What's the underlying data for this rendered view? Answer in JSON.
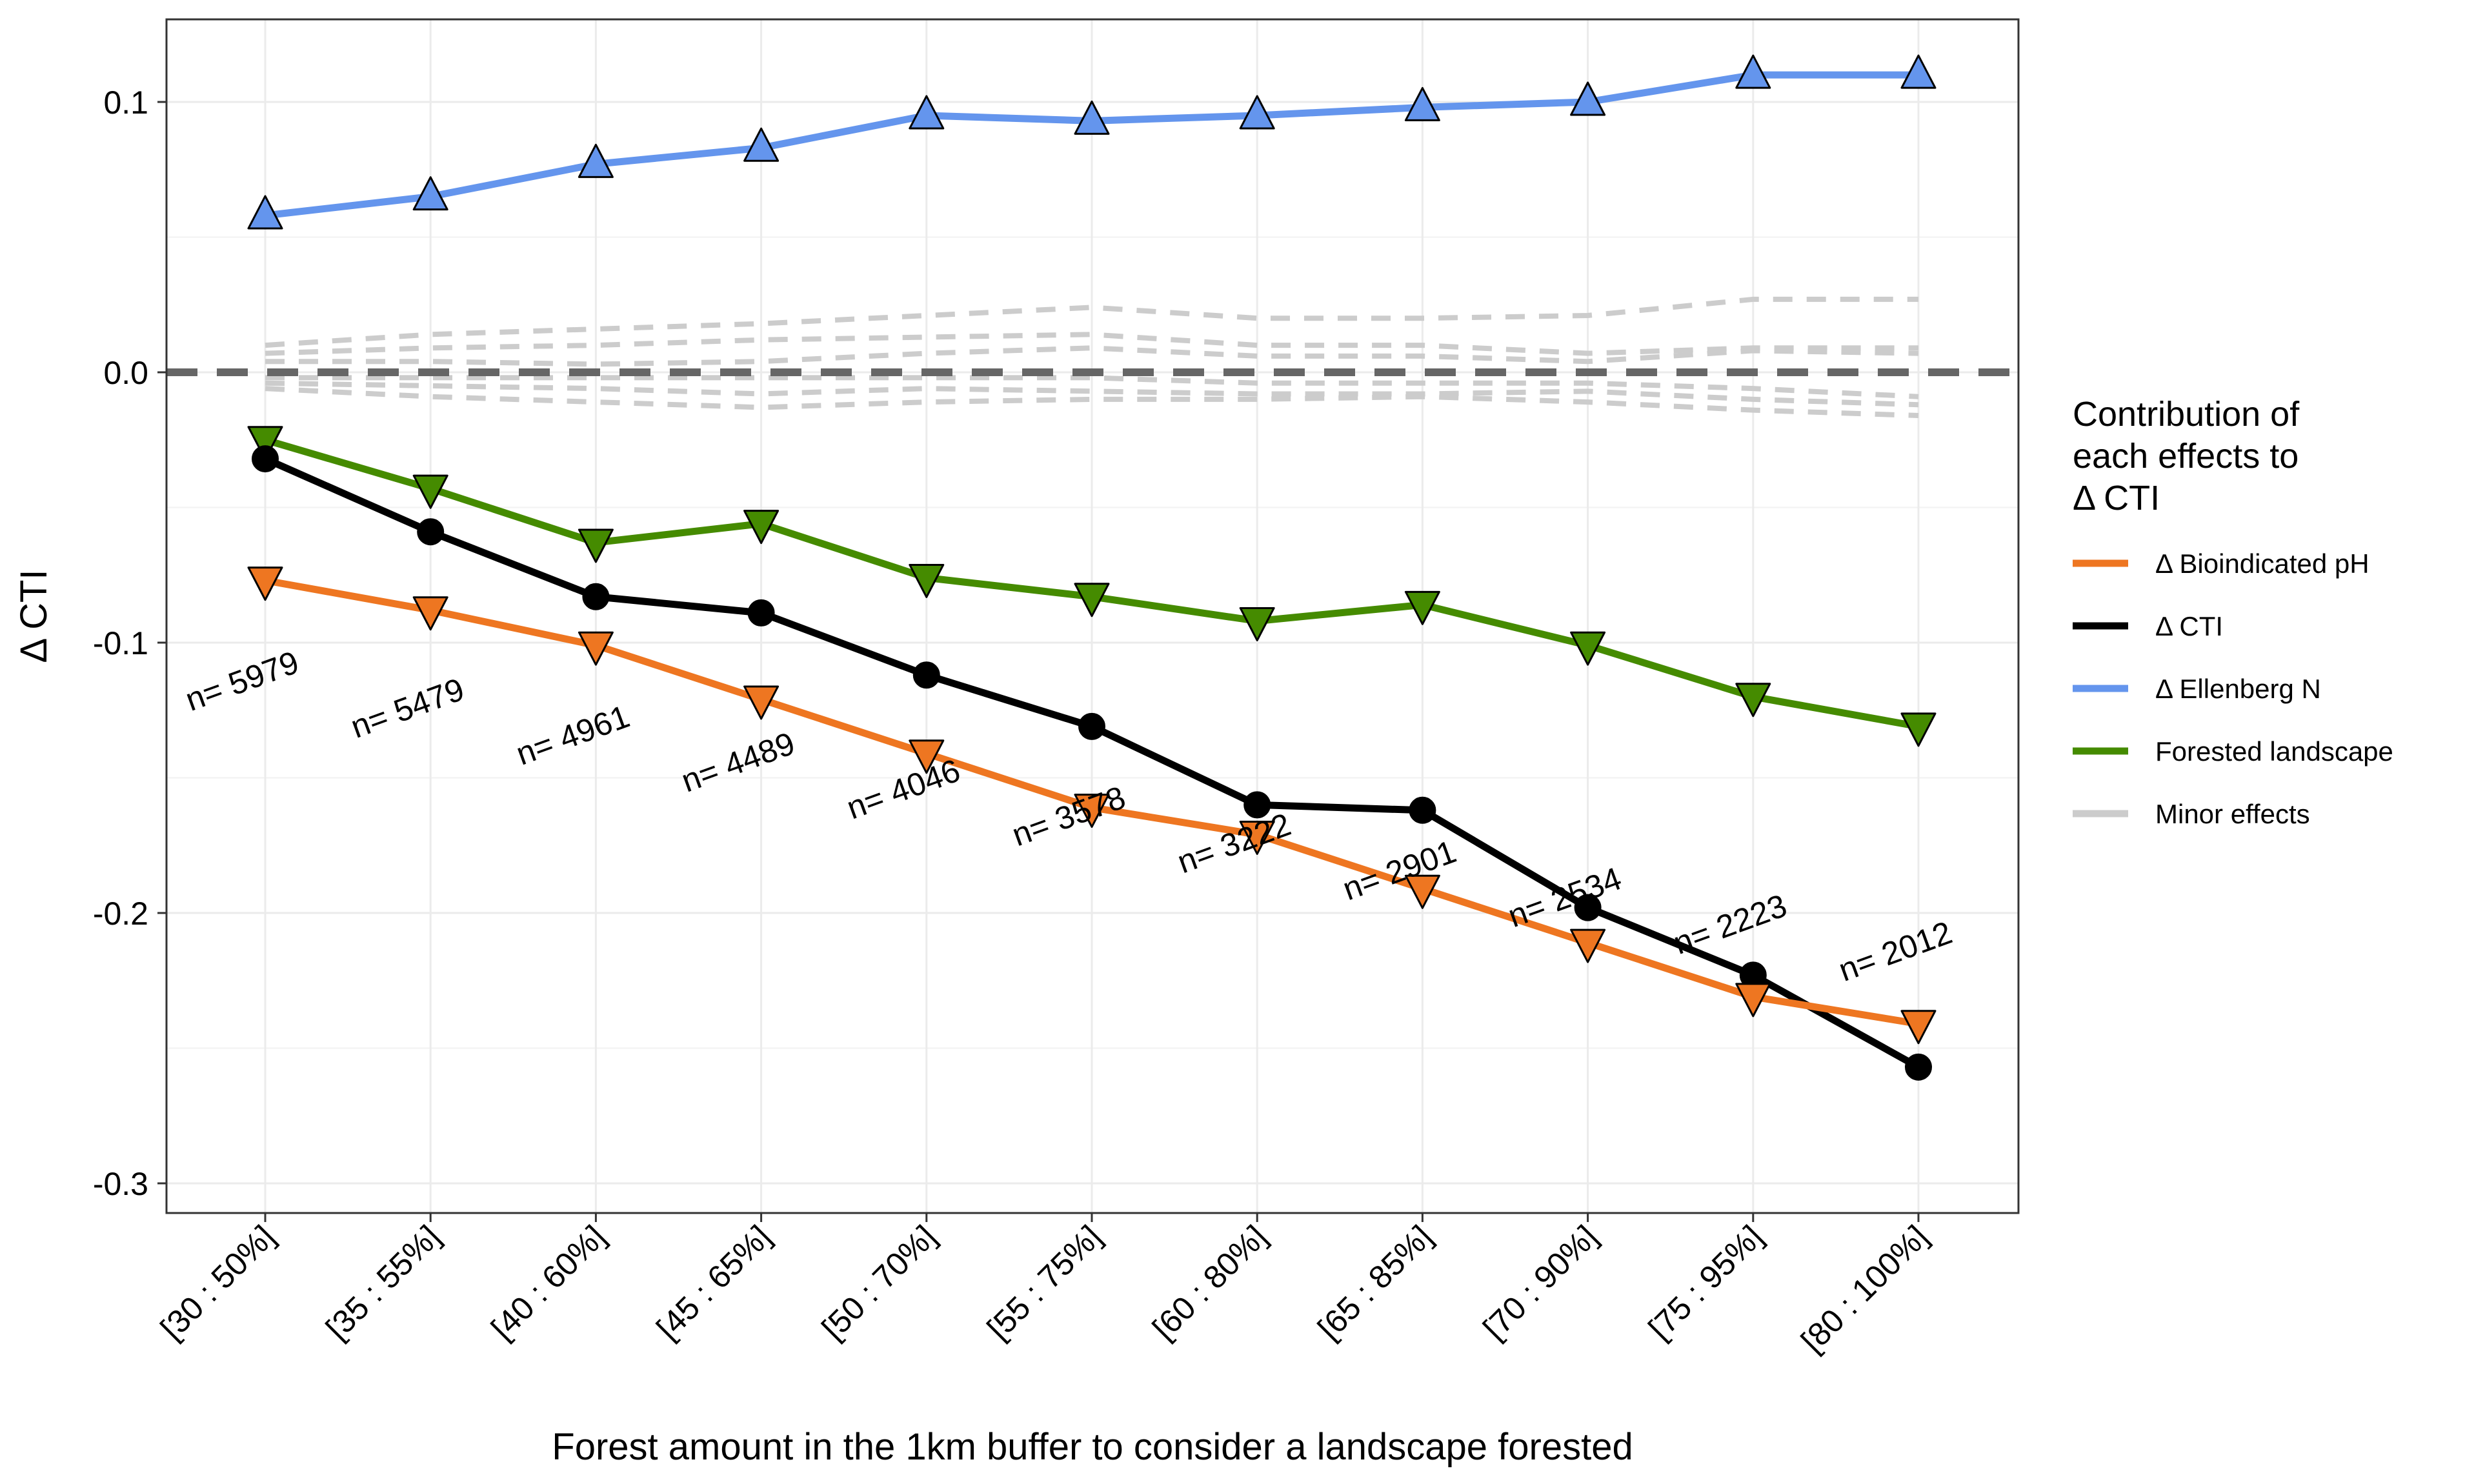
{
  "chart_data": {
    "type": "line",
    "title": "",
    "xlabel": "Forest amount in the 1km buffer to consider a landscape forested",
    "ylabel": "Δ CTI",
    "ylim": [
      -0.31,
      0.13
    ],
    "yticks": [
      0.1,
      0.0,
      -0.1,
      -0.2,
      -0.3
    ],
    "ytick_labels": [
      "0.1",
      "0.0",
      "-0.1",
      "-0.2",
      "-0.3"
    ],
    "categories": [
      "[30 : 50%]",
      "[35 : 55%]",
      "[40 : 60%]",
      "[45 : 65%]",
      "[50 : 70%]",
      "[55 : 75%]",
      "[60 : 80%]",
      "[65 : 85%]",
      "[70 : 90%]",
      "[75 : 95%]",
      "[80 : 100%]"
    ],
    "grid": true,
    "zero_line": true,
    "annotations": [
      "n= 5979",
      "n= 5479",
      "n= 4961",
      "n= 4489",
      "n= 4046",
      "n= 3578",
      "n= 3222",
      "n= 2901",
      "n= 2534",
      "n= 2223",
      "n= 2012"
    ],
    "annotation_y": [
      -0.118,
      -0.128,
      -0.138,
      -0.148,
      -0.158,
      -0.168,
      -0.178,
      -0.188,
      -0.198,
      -0.208,
      -0.218
    ],
    "legend": {
      "title": "Contribution of each effects to Δ CTI",
      "title_lines": [
        "Contribution of",
        "each effects to",
        "Δ CTI"
      ],
      "placement": "right",
      "entries": [
        "Δ Bioindicated pH",
        "Δ CTI",
        "Δ Ellenberg N",
        "Forested landscape",
        "Minor effects"
      ]
    },
    "series": [
      {
        "name": "Δ Ellenberg N",
        "color": "#6495ED",
        "marker": "triangle-up",
        "values": [
          0.058,
          0.065,
          0.077,
          0.083,
          0.095,
          0.093,
          0.095,
          0.098,
          0.1,
          0.11,
          0.11
        ]
      },
      {
        "name": "Forested landscape",
        "color": "#458B00",
        "marker": "triangle-down",
        "values": [
          -0.025,
          -0.043,
          -0.063,
          -0.056,
          -0.076,
          -0.083,
          -0.092,
          -0.086,
          -0.101,
          -0.12,
          -0.131
        ]
      },
      {
        "name": "Δ CTI",
        "color": "#000000",
        "marker": "circle",
        "values": [
          -0.032,
          -0.059,
          -0.083,
          -0.089,
          -0.112,
          -0.131,
          -0.16,
          -0.162,
          -0.198,
          -0.223,
          -0.257
        ]
      },
      {
        "name": "Δ Bioindicated pH",
        "color": "#EE7621",
        "marker": "triangle-down",
        "values": [
          -0.077,
          -0.088,
          -0.101,
          -0.121,
          -0.141,
          -0.161,
          -0.171,
          -0.191,
          -0.211,
          -0.231,
          -0.241
        ]
      }
    ],
    "minor_effects": {
      "name": "Minor effects",
      "color": "#CCCCCC",
      "lines": [
        [
          0.01,
          0.014,
          0.016,
          0.018,
          0.021,
          0.024,
          0.02,
          0.02,
          0.021,
          0.027,
          0.027
        ],
        [
          0.007,
          0.009,
          0.01,
          0.012,
          0.013,
          0.014,
          0.01,
          0.01,
          0.007,
          0.009,
          0.009
        ],
        [
          0.004,
          0.004,
          0.003,
          0.004,
          0.007,
          0.009,
          0.006,
          0.006,
          0.004,
          0.008,
          0.007
        ],
        [
          -0.002,
          -0.002,
          -0.002,
          -0.002,
          -0.002,
          -0.002,
          -0.004,
          -0.004,
          -0.004,
          -0.006,
          -0.009
        ],
        [
          -0.004,
          -0.005,
          -0.006,
          -0.008,
          -0.006,
          -0.007,
          -0.008,
          -0.008,
          -0.007,
          -0.01,
          -0.012
        ],
        [
          -0.006,
          -0.009,
          -0.011,
          -0.013,
          -0.011,
          -0.01,
          -0.01,
          -0.009,
          -0.011,
          -0.014,
          -0.016
        ]
      ]
    }
  }
}
